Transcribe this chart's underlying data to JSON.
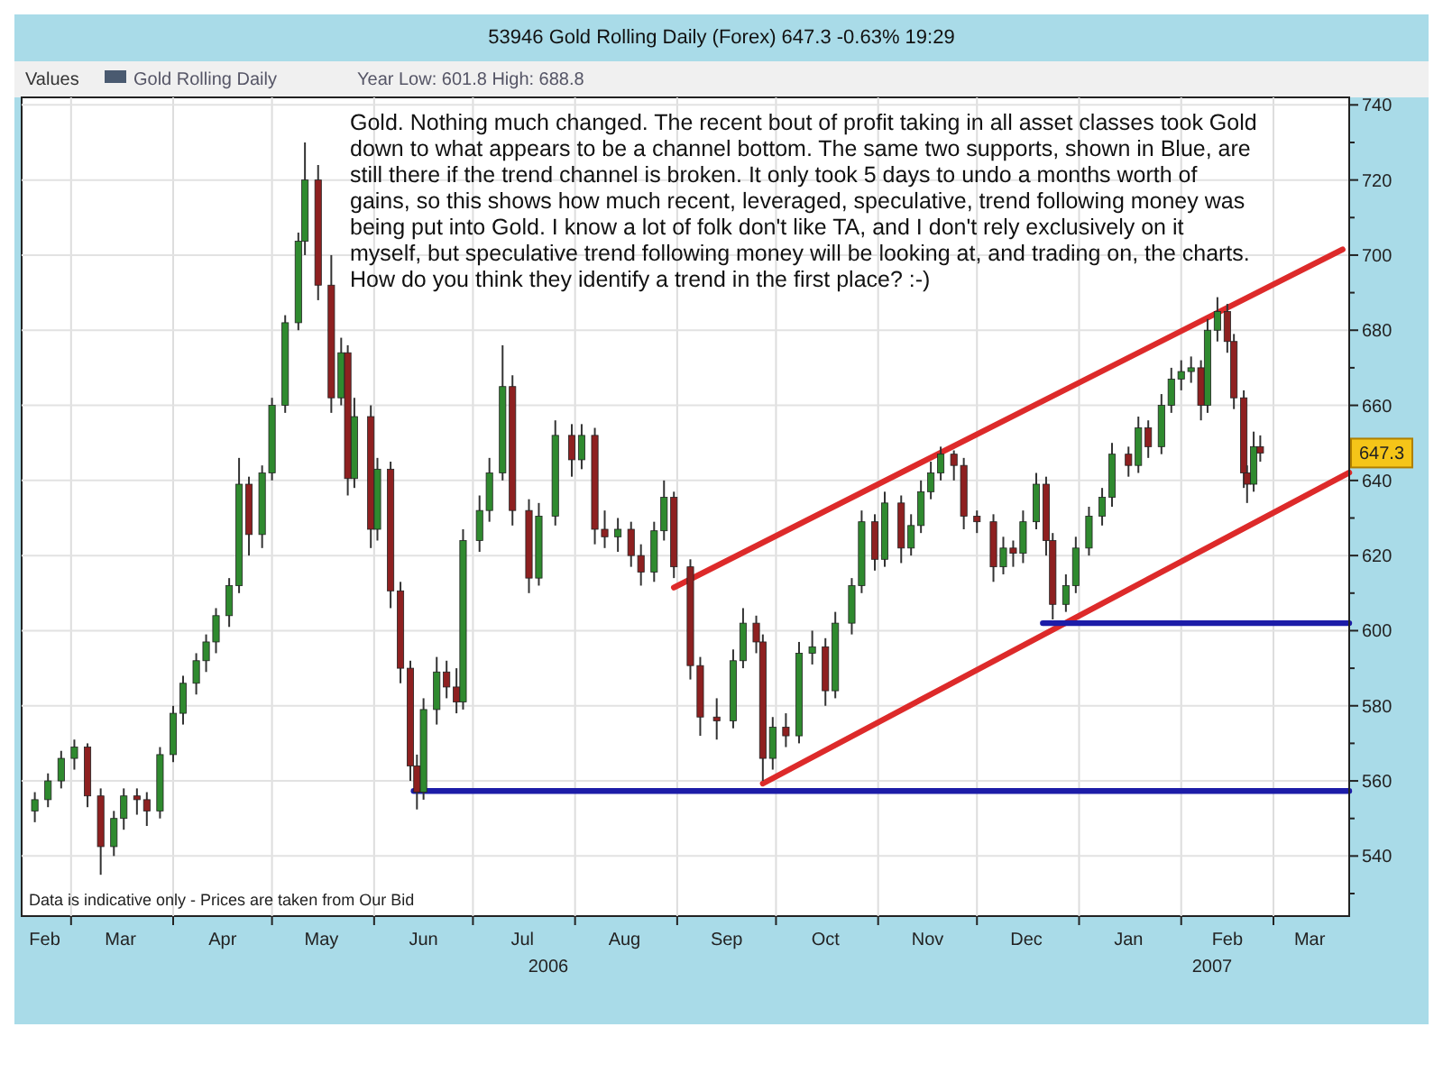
{
  "chart_data": {
    "type": "candlestick",
    "title": "53946 Gold Rolling Daily (Forex) 647.3 -0.63% 19:29",
    "subtitle": "Year Low: 601.8 High: 688.8",
    "legend_title": "Values",
    "legend": "top left",
    "grid": true,
    "xlim": [
      "2006-02-14",
      "2007-03-24"
    ],
    "ylim": [
      524,
      742
    ],
    "xticks": [
      {
        "value": "2006-03-01",
        "label": null
      },
      {
        "value": "2006-04-01",
        "label": null
      },
      {
        "value": "2006-05-01",
        "label": null
      },
      {
        "value": "2006-06-01",
        "label": null
      },
      {
        "value": "2006-07-01",
        "label": null
      },
      {
        "value": "2006-08-01",
        "label": null
      },
      {
        "value": "2006-09-01",
        "label": null
      },
      {
        "value": "2006-10-01",
        "label": null
      },
      {
        "value": "2006-11-01",
        "label": null
      },
      {
        "value": "2006-12-01",
        "label": null
      },
      {
        "value": "2007-01-01",
        "label": null
      },
      {
        "value": "2007-02-01",
        "label": null
      },
      {
        "value": "2007-03-01",
        "label": null
      },
      {
        "value": "2006-02-21",
        "label": "Feb"
      },
      {
        "value": "2006-03-16",
        "label": "Mar"
      },
      {
        "value": "2006-04-16",
        "label": "Apr"
      },
      {
        "value": "2006-05-16",
        "label": "May"
      },
      {
        "value": "2006-06-16",
        "label": "Jun"
      },
      {
        "value": "2006-07-16",
        "label": "Jul"
      },
      {
        "value": "2006-08-16",
        "label": "Aug"
      },
      {
        "value": "2006-09-16",
        "label": "Sep"
      },
      {
        "value": "2006-10-16",
        "label": "Oct"
      },
      {
        "value": "2006-11-16",
        "label": "Nov"
      },
      {
        "value": "2006-12-16",
        "label": "Dec"
      },
      {
        "value": "2007-01-16",
        "label": "Jan"
      },
      {
        "value": "2007-02-15",
        "label": "Feb"
      },
      {
        "value": "2007-03-12",
        "label": "Mar"
      }
    ],
    "yticks": [
      {
        "value": 530,
        "label": null
      },
      540,
      {
        "value": 550,
        "label": null
      },
      560,
      {
        "value": 570,
        "label": null
      },
      580,
      {
        "value": 590,
        "label": null
      },
      600,
      {
        "value": 610,
        "label": null
      },
      620,
      {
        "value": 630,
        "label": null
      },
      640,
      {
        "value": 650,
        "label": null
      },
      660,
      {
        "value": 670,
        "label": null
      },
      680,
      {
        "value": 690,
        "label": null
      },
      700,
      {
        "value": 710,
        "label": null
      },
      720,
      {
        "value": 730,
        "label": null
      },
      740
    ],
    "annotations": [
      "Gold. Nothing much changed. The recent bout of profit taking in all asset classes took Gold down to what appears to be a channel bottom. The same two supports, shown in Blue, are still there if the trend channel is broken. It only took 5 days to undo a months worth of gains, so this shows how much recent, leveraged, speculative, trend following money was being put into Gold. I know a lot of folk don't like TA, and I don't rely exclusively on it myself, but speculative trend following money will be looking at, and trading on, the charts. How do you think they identify a trend in the first place? :-)",
      "Data is indicative only - Prices are taken from Our Bid",
      "2006",
      "2007",
      {
        "text": "647.3",
        "y": 647.3
      }
    ],
    "series": [
      {
        "type": "line",
        "color": "#dd2a2a",
        "x": [
          "2006-08-31",
          "2007-03-22"
        ],
        "values": [
          611.5,
          701.5
        ]
      },
      {
        "type": "line",
        "color": "#dd2a2a",
        "x": [
          "2006-09-27",
          "2007-03-24"
        ],
        "values": [
          559.3,
          642.1
        ]
      },
      {
        "type": "line",
        "color": "#1c1ca8",
        "x": [
          "2006-06-13",
          "2007-03-24"
        ],
        "values": [
          557.3,
          557.3
        ]
      },
      {
        "type": "line",
        "color": "#1c1ca8",
        "x": [
          "2006-12-21",
          "2007-03-24"
        ],
        "values": [
          602,
          602
        ]
      },
      {
        "name": "Gold Rolling Daily",
        "color": "#4a5a70",
        "colors": [
          "#2f8a2f",
          "#2f8a2f",
          "#2f8a2f",
          "#2f8a2f",
          "#8e2020",
          "#8e2020",
          "#2f8a2f",
          "#2f8a2f",
          "#8e2020",
          "#8e2020",
          "#2f8a2f",
          "#2f8a2f",
          "#2f8a2f",
          "#2f8a2f",
          "#2f8a2f",
          "#2f8a2f",
          "#2f8a2f",
          "#2f8a2f",
          "#8e2020",
          "#2f8a2f",
          "#2f8a2f",
          "#2f8a2f",
          "#2f8a2f",
          "#2f8a2f",
          "#8e2020",
          "#8e2020",
          "#2f8a2f",
          "#8e2020",
          "#2f8a2f",
          "#8e2020",
          "#2f8a2f",
          "#8e2020",
          "#8e2020",
          "#8e2020",
          "#8e2020",
          "#2f8a2f",
          "#2f8a2f",
          "#8e2020",
          "#8e2020",
          "#2f8a2f",
          "#2f8a2f",
          "#2f8a2f",
          "#2f8a2f",
          "#8e2020",
          "#8e2020",
          "#2f8a2f",
          "#2f8a2f",
          "#8e2020",
          "#2f8a2f",
          "#8e2020",
          "#8e2020",
          "#2f8a2f",
          "#8e2020",
          "#8e2020",
          "#2f8a2f",
          "#2f8a2f",
          "#8e2020",
          "#8e2020",
          "#8e2020",
          "#8e2020",
          "#2f8a2f",
          "#2f8a2f",
          "#8e2020",
          "#8e2020",
          "#2f8a2f",
          "#8e2020",
          "#2f8a2f",
          "#2f8a2f",
          "#8e2020",
          "#2f8a2f",
          "#2f8a2f",
          "#2f8a2f",
          "#8e2020",
          "#2f8a2f",
          "#8e2020",
          "#2f8a2f",
          "#2f8a2f",
          "#2f8a2f",
          "#2f8a2f",
          "#8e2020",
          "#8e2020",
          "#8e2020",
          "#8e2020",
          "#2f8a2f",
          "#8e2020",
          "#2f8a2f",
          "#2f8a2f",
          "#8e2020",
          "#8e2020",
          "#2f8a2f",
          "#2f8a2f",
          "#2f8a2f",
          "#2f8a2f",
          "#2f8a2f",
          "#8e2020",
          "#2f8a2f",
          "#8e2020",
          "#2f8a2f",
          "#2f8a2f",
          "#2f8a2f",
          "#2f8a2f",
          "#8e2020",
          "#2f8a2f",
          "#2f8a2f",
          "#8e2020",
          "#8e2020",
          "#8e2020",
          "#8e2020",
          "#2f8a2f",
          "#8e2020"
        ],
        "x": [
          "2006-02-18",
          "2006-02-22",
          "2006-02-26",
          "2006-03-02",
          "2006-03-06",
          "2006-03-10",
          "2006-03-14",
          "2006-03-17",
          "2006-03-21",
          "2006-03-24",
          "2006-03-28",
          "2006-04-01",
          "2006-04-04",
          "2006-04-08",
          "2006-04-11",
          "2006-04-14",
          "2006-04-18",
          "2006-04-21",
          "2006-04-24",
          "2006-04-28",
          "2006-05-01",
          "2006-05-05",
          "2006-05-09",
          "2006-05-11",
          "2006-05-15",
          "2006-05-19",
          "2006-05-22",
          "2006-05-24",
          "2006-05-26",
          "2006-05-31",
          "2006-06-02",
          "2006-06-06",
          "2006-06-09",
          "2006-06-12",
          "2006-06-14",
          "2006-06-16",
          "2006-06-20",
          "2006-06-23",
          "2006-06-26",
          "2006-06-28",
          "2006-07-03",
          "2006-07-06",
          "2006-07-10",
          "2006-07-13",
          "2006-07-18",
          "2006-07-21",
          "2006-07-26",
          "2006-07-31",
          "2006-08-03",
          "2006-08-07",
          "2006-08-10",
          "2006-08-14",
          "2006-08-18",
          "2006-08-21",
          "2006-08-25",
          "2006-08-28",
          "2006-08-31",
          "2006-09-05",
          "2006-09-08",
          "2006-09-13",
          "2006-09-18",
          "2006-09-21",
          "2006-09-25",
          "2006-09-27",
          "2006-09-30",
          "2006-10-04",
          "2006-10-08",
          "2006-10-12",
          "2006-10-16",
          "2006-10-19",
          "2006-10-24",
          "2006-10-27",
          "2006-10-31",
          "2006-11-03",
          "2006-11-08",
          "2006-11-11",
          "2006-11-14",
          "2006-11-17",
          "2006-11-20",
          "2006-11-24",
          "2006-11-27",
          "2006-12-01",
          "2006-12-06",
          "2006-12-09",
          "2006-12-12",
          "2006-12-15",
          "2006-12-19",
          "2006-12-22",
          "2006-12-24",
          "2006-12-28",
          "2006-12-31",
          "2007-01-04",
          "2007-01-08",
          "2007-01-11",
          "2007-01-16",
          "2007-01-19",
          "2007-01-22",
          "2007-01-26",
          "2007-01-29",
          "2007-02-01",
          "2007-02-04",
          "2007-02-07",
          "2007-02-09",
          "2007-02-12",
          "2007-02-15",
          "2007-02-17",
          "2007-02-20",
          "2007-02-21",
          "2007-02-23",
          "2007-02-25"
        ],
        "ohlc": [
          [
            552,
            557,
            549,
            555
          ],
          [
            555,
            562,
            553,
            560
          ],
          [
            560,
            568,
            558,
            566
          ],
          [
            566,
            571,
            563,
            569
          ],
          [
            569,
            570,
            553,
            556
          ],
          [
            556,
            558,
            535,
            542.5
          ],
          [
            542.5,
            552,
            540,
            550
          ],
          [
            550,
            558,
            547,
            556
          ],
          [
            556,
            558,
            551,
            555
          ],
          [
            555,
            557,
            548,
            552
          ],
          [
            552,
            569,
            550,
            567
          ],
          [
            567,
            580,
            565,
            578
          ],
          [
            578,
            588,
            575,
            586
          ],
          [
            586,
            594,
            583,
            592
          ],
          [
            592,
            599,
            589,
            597
          ],
          [
            597,
            606,
            594,
            604
          ],
          [
            604,
            614,
            601,
            612
          ],
          [
            612,
            646,
            610,
            639
          ],
          [
            639,
            641,
            620,
            625.6
          ],
          [
            625.6,
            644,
            622,
            642
          ],
          [
            642,
            662,
            640,
            660
          ],
          [
            660,
            684,
            658,
            682
          ],
          [
            682,
            706,
            680,
            703.7
          ],
          [
            703.7,
            730,
            700,
            720
          ],
          [
            720,
            724,
            688,
            692
          ],
          [
            692,
            700,
            658,
            662
          ],
          [
            662,
            678,
            660,
            674
          ],
          [
            674,
            676,
            636,
            640.5
          ],
          [
            640.5,
            662,
            638,
            657
          ],
          [
            657,
            660,
            622,
            627
          ],
          [
            627,
            646,
            624,
            643
          ],
          [
            643,
            645,
            606,
            610.6
          ],
          [
            610.6,
            613,
            586,
            590
          ],
          [
            590,
            592,
            560,
            564
          ],
          [
            564,
            567,
            552.4,
            557
          ],
          [
            557,
            582,
            555,
            579
          ],
          [
            579,
            593,
            575,
            589
          ],
          [
            589,
            592,
            582,
            585
          ],
          [
            585,
            590,
            578,
            581
          ],
          [
            581,
            627,
            579,
            624
          ],
          [
            624,
            636,
            621,
            632
          ],
          [
            632,
            646,
            629,
            642
          ],
          [
            642,
            676,
            640,
            665
          ],
          [
            665,
            668,
            628,
            632
          ],
          [
            632,
            635,
            610,
            614
          ],
          [
            614,
            634,
            612,
            630.5
          ],
          [
            630.5,
            656,
            628,
            652
          ],
          [
            652,
            655,
            641,
            645.5
          ],
          [
            645.5,
            655,
            643,
            652
          ],
          [
            652,
            654,
            623,
            627
          ],
          [
            627,
            632,
            622,
            625
          ],
          [
            625,
            630,
            621,
            627
          ],
          [
            627,
            629,
            617,
            620
          ],
          [
            620,
            623,
            612,
            615.6
          ],
          [
            615.6,
            629,
            613,
            626.6
          ],
          [
            626.6,
            640,
            624,
            635.5
          ],
          [
            635.5,
            637,
            614,
            617
          ],
          [
            617,
            619,
            587,
            590.7
          ],
          [
            590.7,
            593,
            572,
            577
          ],
          [
            577,
            582,
            571,
            576
          ],
          [
            576,
            595,
            574,
            592
          ],
          [
            592,
            606,
            590,
            602
          ],
          [
            602,
            604,
            594,
            597
          ],
          [
            597,
            599,
            560,
            566
          ],
          [
            566,
            577,
            563,
            574.3
          ],
          [
            574.3,
            578,
            569,
            572
          ],
          [
            572,
            597,
            570,
            594
          ],
          [
            594,
            600,
            591,
            595.7
          ],
          [
            595.7,
            598,
            580,
            584
          ],
          [
            584,
            605,
            582,
            602
          ],
          [
            602,
            614,
            599,
            612
          ],
          [
            612,
            632,
            610,
            629
          ],
          [
            629,
            631,
            616,
            619
          ],
          [
            619,
            637,
            617,
            634
          ],
          [
            634,
            636,
            618,
            622
          ],
          [
            622,
            631,
            620,
            628
          ],
          [
            628,
            640,
            626,
            637
          ],
          [
            637,
            645,
            635,
            642
          ],
          [
            642,
            649,
            640,
            647
          ],
          [
            647,
            648,
            640,
            644
          ],
          [
            644,
            646,
            627,
            630.5
          ],
          [
            630.5,
            632,
            626,
            629
          ],
          [
            629,
            631,
            613,
            617
          ],
          [
            617,
            625,
            615,
            622
          ],
          [
            622,
            624,
            617,
            620.6
          ],
          [
            620.6,
            632,
            618,
            629
          ],
          [
            629,
            642,
            627,
            639
          ],
          [
            639,
            641,
            620,
            624
          ],
          [
            624,
            626,
            603,
            607
          ],
          [
            607,
            615,
            605,
            612
          ],
          [
            612,
            625,
            610,
            622
          ],
          [
            622,
            633,
            620,
            630.5
          ],
          [
            630.5,
            638,
            628,
            635.5
          ],
          [
            635.5,
            650,
            633,
            647
          ],
          [
            647,
            649,
            641,
            644
          ],
          [
            644,
            657,
            642,
            654
          ],
          [
            654,
            656,
            646,
            649
          ],
          [
            649,
            663,
            647,
            660
          ],
          [
            660,
            670,
            658,
            667
          ],
          [
            667,
            672,
            664,
            669
          ],
          [
            669,
            673,
            666,
            670
          ],
          [
            670,
            672,
            656,
            660
          ],
          [
            660,
            683,
            658,
            680
          ],
          [
            680,
            688.8,
            677,
            685
          ],
          [
            685,
            687,
            674,
            677
          ],
          [
            677,
            679,
            659,
            662
          ],
          [
            662,
            664,
            638,
            642
          ],
          [
            642,
            644,
            634,
            639
          ],
          [
            639,
            653,
            637,
            649
          ],
          [
            649,
            652,
            645,
            647.3
          ]
        ]
      }
    ]
  }
}
